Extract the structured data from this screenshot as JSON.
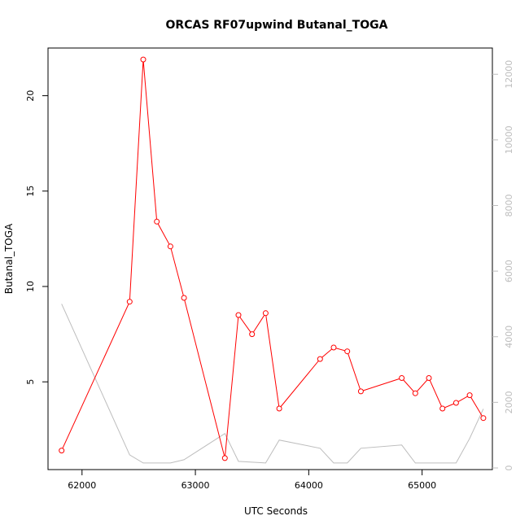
{
  "chart_data": {
    "type": "line",
    "title": "ORCAS RF07upwind Butanal_TOGA",
    "xlabel": "UTC Seconds",
    "ylabel": "Butanal_TOGA",
    "xlim": [
      61700,
      65620
    ],
    "ylim": [
      0.4,
      22.5
    ],
    "y2lim": [
      -50,
      12800
    ],
    "x_ticks": [
      62000,
      63000,
      64000,
      65000
    ],
    "y_ticks": [
      5,
      10,
      15,
      20
    ],
    "y2_ticks": [
      0,
      2000,
      4000,
      6000,
      8000,
      10000,
      12000
    ],
    "grid": false,
    "legend": "none",
    "series": [
      {
        "axis": "left",
        "color": "#ff0000",
        "marker": "open-circle",
        "x": [
          61820,
          62420,
          62540,
          62660,
          62780,
          62900,
          63260,
          63380,
          63500,
          63620,
          63740,
          64100,
          64220,
          64340,
          64460,
          64820,
          64940,
          65060,
          65180,
          65300,
          65420,
          65540
        ],
        "y": [
          1.4,
          9.2,
          21.9,
          13.4,
          12.1,
          9.4,
          1.0,
          8.5,
          7.5,
          8.6,
          3.6,
          6.2,
          6.8,
          6.6,
          4.5,
          5.2,
          4.4,
          5.2,
          3.6,
          3.9,
          4.3,
          3.1
        ]
      },
      {
        "axis": "right",
        "color": "#bdbdbd",
        "marker": "none",
        "x": [
          61820,
          62420,
          62540,
          62780,
          62900,
          63260,
          63380,
          63620,
          63740,
          64100,
          64220,
          64340,
          64460,
          64820,
          64940,
          65300,
          65420,
          65540
        ],
        "y": [
          5000,
          400,
          150,
          150,
          250,
          1050,
          200,
          150,
          850,
          600,
          150,
          150,
          600,
          700,
          150,
          150,
          900,
          1800
        ]
      }
    ]
  }
}
